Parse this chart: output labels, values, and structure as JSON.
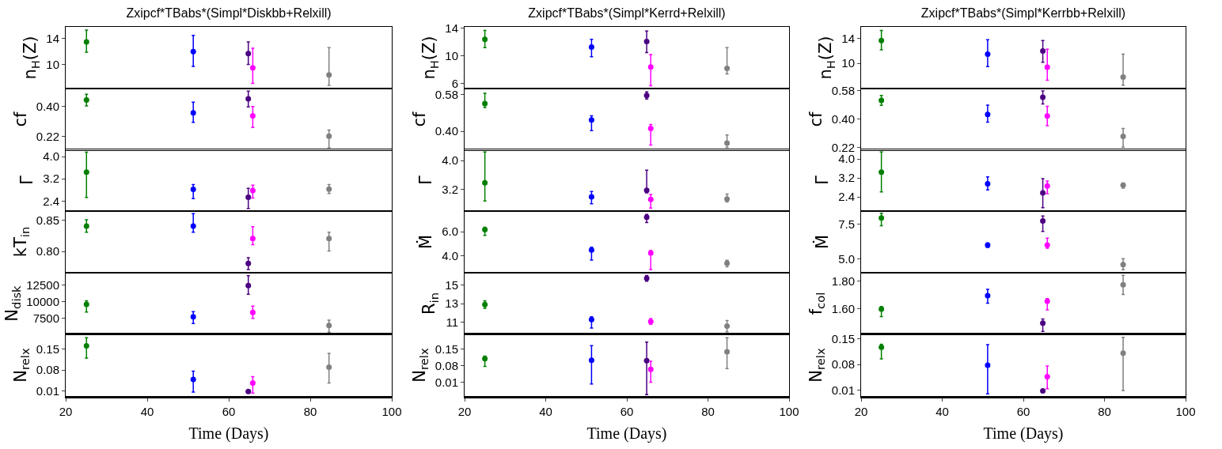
{
  "chart_data": [
    {
      "type": "scatter",
      "title": "Zxipcf*TBabs*(Simpl*Diskbb+Relxill)",
      "ylabel": "n$_{H}$(Z)",
      "x": [
        25.1,
        51.3,
        64.8,
        65.9,
        84.6
      ],
      "marker": "circle",
      "tick_labels": "y",
      "xlim": [
        20,
        100
      ],
      "xticks": [
        20,
        40,
        60,
        80,
        100
      ],
      "ylim": [
        6.3,
        15.8
      ],
      "yticks": [
        10,
        14
      ],
      "series": [
        {
          "colors": [
            "#008000",
            "#0000ff",
            "#4b0082",
            "#ff00ff",
            "#808080"
          ],
          "values": [
            13.5,
            12.0,
            11.7,
            9.5,
            8.4
          ],
          "errors": [
            [
              11.9,
              15.3
            ],
            [
              9.7,
              14.5
            ],
            [
              10.0,
              13.5
            ],
            [
              7.1,
              12.5
            ],
            [
              6.8,
              12.6
            ]
          ]
        }
      ]
    },
    {
      "type": "scatter",
      "ylabel": "cf",
      "x": [
        25.1,
        51.3,
        64.8,
        65.9,
        84.6
      ],
      "marker": "circle",
      "tick_labels": "y",
      "xlim": [
        20,
        100
      ],
      "xticks": [
        20,
        40,
        60,
        80,
        100
      ],
      "ylim": [
        0.135,
        0.509
      ],
      "yticks": [
        {
          "value": 0.22,
          "label": "0.22"
        },
        {
          "value": 0.4,
          "label": "0.40"
        }
      ],
      "series": [
        {
          "colors": [
            "#008000",
            "#0000ff",
            "#4b0082",
            "#ff00ff",
            "#808080"
          ],
          "values": [
            0.439,
            0.361,
            0.447,
            0.344,
            0.22
          ],
          "errors": [
            [
              0.403,
              0.474
            ],
            [
              0.304,
              0.426
            ],
            [
              0.398,
              0.494
            ],
            [
              0.273,
              0.4
            ],
            [
              0.151,
              0.257
            ]
          ]
        }
      ]
    },
    {
      "type": "scatter",
      "ylabel": "Γ",
      "x": [
        25.1,
        51.3,
        64.8,
        65.9,
        84.6
      ],
      "marker": "circle",
      "tick_labels": "y",
      "xlim": [
        20,
        100
      ],
      "xticks": [
        20,
        40,
        60,
        80,
        100
      ],
      "ylim": [
        2.04,
        4.26
      ],
      "yticks": [
        {
          "value": 2.4,
          "label": "2.4"
        },
        {
          "value": 3.2,
          "label": "3.2"
        },
        {
          "value": 4.0,
          "label": "4.0"
        }
      ],
      "series": [
        {
          "colors": [
            "#008000",
            "#0000ff",
            "#4b0082",
            "#ff00ff",
            "#808080"
          ],
          "values": [
            3.44,
            2.82,
            2.54,
            2.78,
            2.83
          ],
          "errors": [
            [
              2.53,
              4.16
            ],
            [
              2.49,
              2.99
            ],
            [
              2.13,
              2.86
            ],
            [
              2.51,
              2.97
            ],
            [
              2.67,
              2.99
            ]
          ]
        }
      ]
    },
    {
      "type": "scatter",
      "ylabel": "kT$_{in}$",
      "x": [
        25.1,
        51.3,
        64.8,
        65.9,
        84.6
      ],
      "marker": "circle",
      "tick_labels": "y",
      "xlim": [
        20,
        100
      ],
      "xticks": [
        20,
        40,
        60,
        80,
        100
      ],
      "ylim": [
        0.766,
        0.865
      ],
      "yticks": [
        {
          "value": 0.8,
          "label": "0.80"
        },
        {
          "value": 0.85,
          "label": "0.85"
        }
      ],
      "series": [
        {
          "colors": [
            "#008000",
            "#0000ff",
            "#4b0082",
            "#ff00ff",
            "#808080"
          ],
          "values": [
            0.841,
            0.841,
            0.781,
            0.821,
            0.821
          ],
          "errors": [
            [
              0.831,
              0.851
            ],
            [
              0.831,
              0.861
            ],
            [
              0.771,
              0.79
            ],
            [
              0.811,
              0.84
            ],
            [
              0.801,
              0.831
            ]
          ]
        }
      ]
    },
    {
      "type": "scatter",
      "ylabel": "N$_{disk}$",
      "x": [
        25.1,
        51.3,
        64.8,
        65.9,
        84.6
      ],
      "marker": "circle",
      "tick_labels": "y",
      "xlim": [
        20,
        100
      ],
      "xticks": [
        20,
        40,
        60,
        80,
        100
      ],
      "ylim": [
        5120,
        14330
      ],
      "yticks": [
        7500,
        10000,
        12500
      ],
      "series": [
        {
          "colors": [
            "#008000",
            "#0000ff",
            "#4b0082",
            "#ff00ff",
            "#808080"
          ],
          "values": [
            9600,
            7750,
            12400,
            8400,
            6450
          ],
          "errors": [
            [
              8450,
              10150
            ],
            [
              6750,
              8500
            ],
            [
              11100,
              13900
            ],
            [
              7500,
              9350
            ],
            [
              5450,
              7250
            ]
          ]
        }
      ]
    },
    {
      "type": "scatter",
      "ylabel": "N$_{relx}$",
      "xlabel": "Time (Days)",
      "x": [
        25.1,
        51.3,
        64.8,
        65.9,
        84.6
      ],
      "marker": "circle",
      "xlim": [
        20,
        100
      ],
      "xticks": [
        20,
        40,
        60,
        80,
        100
      ],
      "ylim": [
        -0.008,
        0.2
      ],
      "yticks": [
        {
          "value": 0.01,
          "label": "0.01"
        },
        {
          "value": 0.08,
          "label": "0.08"
        },
        {
          "value": 0.15,
          "label": "0.15"
        }
      ],
      "series": [
        {
          "colors": [
            "#008000",
            "#0000ff",
            "#4b0082",
            "#ff00ff",
            "#808080"
          ],
          "values": [
            0.161,
            0.048,
            0.007,
            0.036,
            0.089
          ],
          "errors": [
            [
              0.12,
              0.189
            ],
            [
              0.005,
              0.076
            ],
            null,
            [
              0.002,
              0.057
            ],
            [
              0.036,
              0.136
            ]
          ]
        }
      ]
    },
    {
      "type": "scatter",
      "title": "Zxipcf*TBabs*(Simpl*Kerrd+Relxill)",
      "ylabel": "n$_{H}$(Z)",
      "x": [
        25.0,
        51.3,
        64.9,
        65.9,
        84.7
      ],
      "marker": "circle",
      "tick_labels": "y",
      "xlim": [
        20,
        100
      ],
      "xticks": [
        20,
        40,
        60,
        80,
        100
      ],
      "ylim": [
        5.3,
        14.2
      ],
      "yticks": [
        6,
        10,
        14
      ],
      "series": [
        {
          "colors": [
            "#008000",
            "#0000ff",
            "#4b0082",
            "#ff00ff",
            "#808080"
          ],
          "values": [
            12.4,
            11.3,
            12.1,
            8.4,
            8.2
          ],
          "errors": [
            [
              11.2,
              13.7
            ],
            [
              9.9,
              12.4
            ],
            [
              10.5,
              13.6
            ],
            [
              5.7,
              10.2
            ],
            [
              7.4,
              11.2
            ]
          ]
        }
      ]
    },
    {
      "type": "scatter",
      "ylabel": "cf",
      "x": [
        25.0,
        51.3,
        64.9,
        65.9,
        84.7
      ],
      "marker": "circle",
      "tick_labels": "y",
      "xlim": [
        20,
        100
      ],
      "xticks": [
        20,
        40,
        60,
        80,
        100
      ],
      "ylim": [
        0.307,
        0.611
      ],
      "yticks": [
        {
          "value": 0.4,
          "label": "0.40"
        },
        {
          "value": 0.58,
          "label": "0.58"
        }
      ],
      "series": [
        {
          "colors": [
            "#008000",
            "#0000ff",
            "#4b0082",
            "#ff00ff",
            "#808080"
          ],
          "values": [
            0.537,
            0.456,
            0.577,
            0.414,
            0.342
          ],
          "errors": [
            [
              0.517,
              0.588
            ],
            [
              0.403,
              0.477
            ],
            [
              0.559,
              0.594
            ],
            [
              0.332,
              0.434
            ],
            [
              0.321,
              0.382
            ]
          ]
        }
      ]
    },
    {
      "type": "scatter",
      "ylabel": "Γ",
      "x": [
        25.0,
        51.3,
        64.9,
        65.9,
        84.7
      ],
      "marker": "circle",
      "tick_labels": "y",
      "xlim": [
        20,
        100
      ],
      "xticks": [
        20,
        40,
        60,
        80,
        100
      ],
      "ylim": [
        2.61,
        4.31
      ],
      "yticks": [
        {
          "value": 3.2,
          "label": "3.2"
        },
        {
          "value": 4.0,
          "label": "4.0"
        }
      ],
      "series": [
        {
          "colors": [
            "#008000",
            "#0000ff",
            "#4b0082",
            "#ff00ff",
            "#808080"
          ],
          "values": [
            3.39,
            3.0,
            3.18,
            2.93,
            2.94
          ],
          "errors": [
            [
              2.89,
              4.24
            ],
            [
              2.81,
              3.15
            ],
            [
              3.11,
              3.74
            ],
            [
              2.69,
              3.07
            ],
            [
              2.86,
              3.08
            ]
          ]
        }
      ]
    },
    {
      "type": "scatter",
      "ylabel": "Ṁ",
      "x": [
        25.0,
        51.3,
        64.9,
        65.9,
        84.7
      ],
      "marker": "circle",
      "tick_labels": "y",
      "xlim": [
        20,
        100
      ],
      "xticks": [
        20,
        40,
        60,
        80,
        100
      ],
      "ylim": [
        2.63,
        7.7
      ],
      "yticks": [
        {
          "value": 4.0,
          "label": "4.0"
        },
        {
          "value": 6.0,
          "label": "6.0"
        }
      ],
      "series": [
        {
          "colors": [
            "#008000",
            "#0000ff",
            "#4b0082",
            "#ff00ff",
            "#808080"
          ],
          "values": [
            6.17,
            4.5,
            7.2,
            4.26,
            3.41
          ],
          "errors": [
            [
              5.7,
              6.37
            ],
            [
              3.67,
              4.72
            ],
            [
              6.76,
              7.43
            ],
            [
              2.89,
              4.46
            ],
            [
              3.11,
              3.65
            ]
          ]
        }
      ]
    },
    {
      "type": "scatter",
      "ylabel": "R$_{in}$",
      "x": [
        25.0,
        51.3,
        64.9,
        65.9,
        84.7
      ],
      "marker": "circle",
      "tick_labels": "y",
      "xlim": [
        20,
        100
      ],
      "xticks": [
        20,
        40,
        60,
        80,
        100
      ],
      "ylim": [
        9.72,
        16.3
      ],
      "yticks": [
        11,
        13,
        15
      ],
      "series": [
        {
          "colors": [
            "#008000",
            "#0000ff",
            "#4b0082",
            "#ff00ff",
            "#808080"
          ],
          "values": [
            12.9,
            11.3,
            15.7,
            11.1,
            10.6
          ],
          "errors": [
            [
              12.5,
              13.3
            ],
            [
              10.4,
              11.6
            ],
            [
              15.4,
              16.0
            ],
            [
              10.8,
              11.4
            ],
            [
              10.0,
              11.2
            ]
          ]
        }
      ]
    },
    {
      "type": "scatter",
      "ylabel": "N$_{relx}$",
      "xlabel": "Time (Days)",
      "x": [
        25.0,
        51.3,
        64.9,
        65.9,
        84.7
      ],
      "marker": "circle",
      "xlim": [
        20,
        100
      ],
      "xticks": [
        20,
        40,
        60,
        80,
        100
      ],
      "ylim": [
        -0.049,
        0.213
      ],
      "yticks": [
        {
          "value": 0.01,
          "label": "0.01"
        },
        {
          "value": 0.08,
          "label": "0.08"
        },
        {
          "value": 0.15,
          "label": "0.15"
        }
      ],
      "series": [
        {
          "colors": [
            "#008000",
            "#0000ff",
            "#4b0082",
            "#ff00ff",
            "#808080"
          ],
          "values": [
            0.11,
            0.103,
            0.101,
            0.064,
            0.139
          ],
          "errors": [
            [
              0.077,
              0.121
            ],
            [
              0.002,
              0.165
            ],
            [
              -0.043,
              0.18
            ],
            [
              0.01,
              0.099
            ],
            [
              0.068,
              0.199
            ]
          ]
        }
      ]
    },
    {
      "type": "scatter",
      "title": "Zxipcf*TBabs*(Simpl*Kerrbb+Relxill)",
      "ylabel": "n$_{H}$(Z)",
      "x": [
        25.0,
        51.2,
        64.8,
        65.9,
        84.6
      ],
      "marker": "circle",
      "tick_labels": "y",
      "xlim": [
        20,
        100
      ],
      "xticks": [
        20,
        40,
        60,
        80,
        100
      ],
      "ylim": [
        5.96,
        15.88
      ],
      "yticks": [
        10,
        14
      ],
      "series": [
        {
          "colors": [
            "#008000",
            "#0000ff",
            "#4b0082",
            "#ff00ff",
            "#808080"
          ],
          "values": [
            13.7,
            11.5,
            12.0,
            9.4,
            7.8
          ],
          "errors": [
            [
              12.2,
              15.3
            ],
            [
              9.5,
              13.8
            ],
            [
              10.2,
              13.7
            ],
            [
              7.3,
              12.3
            ],
            [
              6.5,
              11.5
            ]
          ]
        }
      ]
    },
    {
      "type": "scatter",
      "ylabel": "cf",
      "x": [
        25.0,
        51.2,
        64.8,
        65.9,
        84.6
      ],
      "marker": "circle",
      "tick_labels": "y",
      "xlim": [
        20,
        100
      ],
      "xticks": [
        20,
        40,
        60,
        80,
        100
      ],
      "ylim": [
        0.205,
        0.592
      ],
      "yticks": [
        {
          "value": 0.22,
          "label": "0.22"
        },
        {
          "value": 0.4,
          "label": "0.40"
        },
        {
          "value": 0.58,
          "label": "0.58"
        }
      ],
      "series": [
        {
          "colors": [
            "#008000",
            "#0000ff",
            "#4b0082",
            "#ff00ff",
            "#808080"
          ],
          "values": [
            0.518,
            0.429,
            0.538,
            0.419,
            0.292
          ],
          "errors": [
            [
              0.487,
              0.549
            ],
            [
              0.381,
              0.488
            ],
            [
              0.495,
              0.577
            ],
            [
              0.359,
              0.48
            ],
            [
              0.223,
              0.341
            ]
          ]
        }
      ]
    },
    {
      "type": "scatter",
      "ylabel": "Γ",
      "x": [
        25.0,
        51.2,
        64.8,
        65.9,
        84.6
      ],
      "marker": "circle",
      "tick_labels": "y",
      "xlim": [
        20,
        100
      ],
      "xticks": [
        20,
        40,
        60,
        80,
        100
      ],
      "ylim": [
        1.8,
        4.4
      ],
      "yticks": [
        {
          "value": 2.4,
          "label": "2.4"
        },
        {
          "value": 3.2,
          "label": "3.2"
        },
        {
          "value": 4.0,
          "label": "4.0"
        }
      ],
      "series": [
        {
          "colors": [
            "#008000",
            "#0000ff",
            "#4b0082",
            "#ff00ff",
            "#808080"
          ],
          "values": [
            3.44,
            2.95,
            2.57,
            2.86,
            2.89
          ],
          "errors": [
            [
              2.61,
              4.29
            ],
            [
              2.69,
              3.24
            ],
            [
              1.94,
              3.17
            ],
            [
              2.53,
              3.07
            ],
            [
              2.77,
              2.98
            ]
          ]
        }
      ]
    },
    {
      "type": "scatter",
      "ylabel": "Ṁ",
      "x": [
        25.0,
        51.2,
        64.8,
        65.9,
        84.6
      ],
      "marker": "circle",
      "tick_labels": "y",
      "xlim": [
        20,
        100
      ],
      "xticks": [
        20,
        40,
        60,
        80,
        100
      ],
      "ylim": [
        4.02,
        8.43
      ],
      "yticks": [
        {
          "value": 5.0,
          "label": "5.0"
        },
        {
          "value": 7.5,
          "label": "7.5"
        }
      ],
      "series": [
        {
          "colors": [
            "#008000",
            "#0000ff",
            "#4b0082",
            "#ff00ff",
            "#808080"
          ],
          "values": [
            7.94,
            6.0,
            7.73,
            6.0,
            4.6
          ],
          "errors": [
            [
              7.39,
              8.28
            ],
            [
              5.83,
              6.14
            ],
            [
              6.97,
              8.07
            ],
            [
              5.77,
              6.49
            ],
            [
              4.23,
              5.02
            ]
          ]
        }
      ]
    },
    {
      "type": "scatter",
      "ylabel": "f$_{col}$",
      "x": [
        25.0,
        51.2,
        64.8,
        65.9,
        84.6
      ],
      "marker": "circle",
      "tick_labels": "y",
      "xlim": [
        20,
        100
      ],
      "xticks": [
        20,
        40,
        60,
        80,
        100
      ],
      "ylim": [
        1.415,
        1.862
      ],
      "yticks": [
        {
          "value": 1.6,
          "label": "1.60"
        },
        {
          "value": 1.8,
          "label": "1.80"
        }
      ],
      "series": [
        {
          "colors": [
            "#008000",
            "#0000ff",
            "#4b0082",
            "#ff00ff",
            "#808080"
          ],
          "values": [
            1.598,
            1.696,
            1.496,
            1.656,
            1.775
          ],
          "errors": [
            [
              1.544,
              1.617
            ],
            [
              1.642,
              1.742
            ],
            [
              1.436,
              1.527
            ],
            [
              1.592,
              1.675
            ],
            [
              1.704,
              1.844
            ]
          ]
        }
      ]
    },
    {
      "type": "scatter",
      "ylabel": "N$_{relx}$",
      "xlabel": "Time (Days)",
      "x": [
        25.0,
        51.2,
        64.8,
        65.9,
        84.6
      ],
      "marker": "circle",
      "xlim": [
        20,
        100
      ],
      "xticks": [
        20,
        40,
        60,
        80,
        100
      ],
      "ylim": [
        -0.006,
        0.162
      ],
      "yticks": [
        {
          "value": 0.01,
          "label": "0.01"
        },
        {
          "value": 0.08,
          "label": "0.08"
        },
        {
          "value": 0.15,
          "label": "0.15"
        }
      ],
      "series": [
        {
          "colors": [
            "#008000",
            "#0000ff",
            "#4b0082",
            "#ff00ff",
            "#808080"
          ],
          "values": [
            0.127,
            0.078,
            0.008,
            0.047,
            0.111
          ],
          "errors": [
            [
              0.095,
              0.135
            ],
            [
              0.0,
              0.134
            ],
            null,
            [
              0.014,
              0.076
            ],
            [
              0.009,
              0.154
            ]
          ]
        }
      ]
    }
  ]
}
